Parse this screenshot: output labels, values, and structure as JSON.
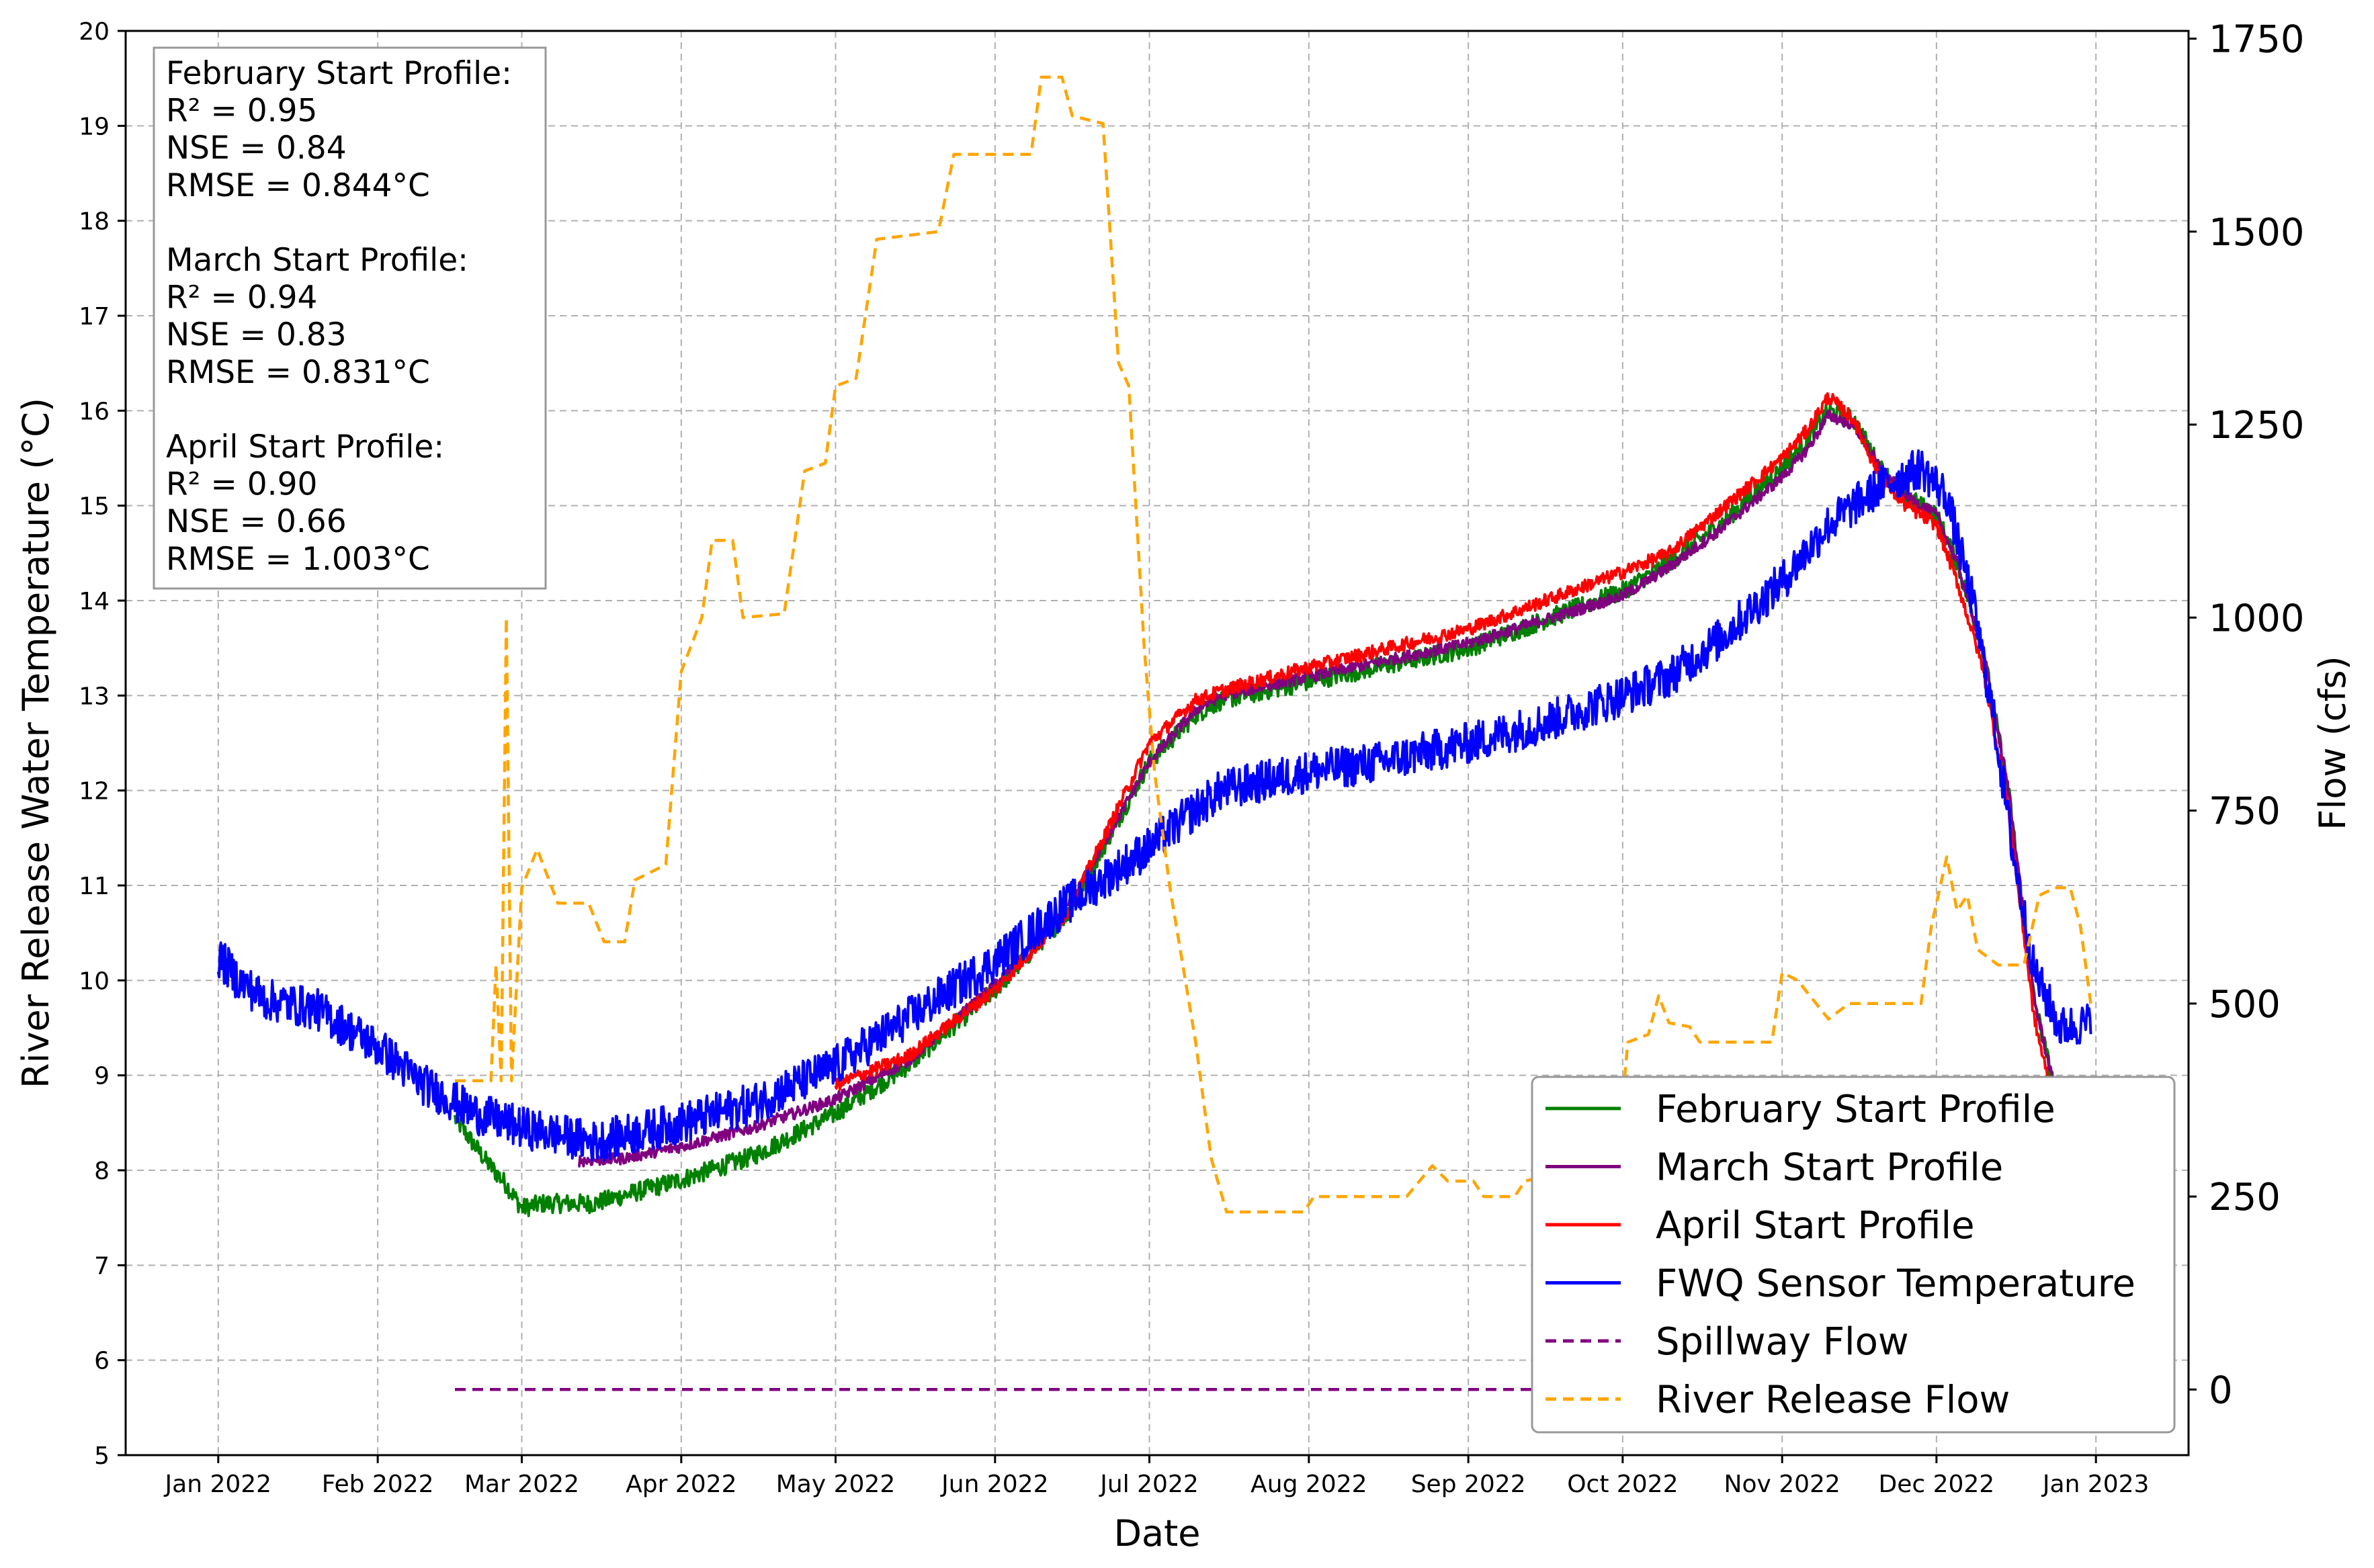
{
  "chart_data": {
    "type": "line",
    "xlabel": "Date",
    "ylabel": "River Release Water Temperature (°C)",
    "ylabel_right": "Flow (cfs)",
    "xlim": [
      "2021-12-14",
      "2023-01-19"
    ],
    "ylim": [
      5,
      20
    ],
    "ylim_right": [
      -85,
      1760
    ],
    "grid": true,
    "legend_position": "lower-right",
    "x_ticks": [
      "Jan 2022",
      "Feb 2022",
      "Mar 2022",
      "Apr 2022",
      "May 2022",
      "Jun 2022",
      "Jul 2022",
      "Aug 2022",
      "Sep 2022",
      "Oct 2022",
      "Nov 2022",
      "Dec 2022",
      "Jan 2023"
    ],
    "x_tick_dates": [
      "2022-01-01",
      "2022-02-01",
      "2022-03-01",
      "2022-04-01",
      "2022-05-01",
      "2022-06-01",
      "2022-07-01",
      "2022-08-01",
      "2022-09-01",
      "2022-10-01",
      "2022-11-01",
      "2022-12-01",
      "2023-01-01"
    ],
    "y_ticks": [
      "5",
      "6",
      "7",
      "8",
      "9",
      "10",
      "11",
      "12",
      "13",
      "14",
      "15",
      "16",
      "17",
      "18",
      "19",
      "20"
    ],
    "y_tick_values": [
      5,
      6,
      7,
      8,
      9,
      10,
      11,
      12,
      13,
      14,
      15,
      16,
      17,
      18,
      19,
      20
    ],
    "y_ticks_right": [
      "0",
      "250",
      "500",
      "750",
      "1000",
      "1250",
      "1500",
      "1750"
    ],
    "y_tick_values_right": [
      0,
      250,
      500,
      750,
      1000,
      1250,
      1500,
      1750
    ],
    "stats_box": [
      "February Start Profile:",
      "R² = 0.95",
      "NSE = 0.84",
      "RMSE = 0.844°C",
      "",
      "March Start Profile:",
      "R² = 0.94",
      "NSE = 0.83",
      "RMSE = 0.831°C",
      "",
      "April Start Profile:",
      "R² = 0.90",
      "NSE = 0.66",
      "RMSE = 1.003°C"
    ],
    "series": [
      {
        "name": "February Start Profile",
        "axis": "left",
        "color": "#008000",
        "dash": false,
        "noise": 0.1,
        "points": [
          [
            "2022-02-16",
            8.55
          ],
          [
            "2022-02-22",
            8.1
          ],
          [
            "2022-02-26",
            7.85
          ],
          [
            "2022-03-01",
            7.6
          ],
          [
            "2022-03-05",
            7.65
          ],
          [
            "2022-03-15",
            7.65
          ],
          [
            "2022-04-01",
            7.9
          ],
          [
            "2022-04-15",
            8.15
          ],
          [
            "2022-05-01",
            8.6
          ],
          [
            "2022-05-15",
            9.1
          ],
          [
            "2022-06-01",
            9.9
          ],
          [
            "2022-06-15",
            10.7
          ],
          [
            "2022-07-01",
            12.3
          ],
          [
            "2022-07-10",
            12.8
          ],
          [
            "2022-07-15",
            12.95
          ],
          [
            "2022-08-01",
            13.15
          ],
          [
            "2022-09-01",
            13.5
          ],
          [
            "2022-10-01",
            14.1
          ],
          [
            "2022-10-10",
            14.4
          ],
          [
            "2022-10-20",
            14.8
          ],
          [
            "2022-11-01",
            15.4
          ],
          [
            "2022-11-06",
            15.7
          ],
          [
            "2022-11-10",
            16.0
          ],
          [
            "2022-11-15",
            15.9
          ],
          [
            "2022-11-20",
            15.4
          ],
          [
            "2022-11-25",
            15.1
          ],
          [
            "2022-12-01",
            14.9
          ],
          [
            "2022-12-05",
            14.4
          ],
          [
            "2022-12-10",
            13.5
          ],
          [
            "2022-12-15",
            12.0
          ],
          [
            "2022-12-20",
            9.8
          ],
          [
            "2022-12-25",
            8.6
          ]
        ]
      },
      {
        "name": "March Start Profile",
        "axis": "left",
        "color": "#800080",
        "dash": false,
        "noise": 0.06,
        "points": [
          [
            "2022-03-12",
            8.1
          ],
          [
            "2022-03-20",
            8.12
          ],
          [
            "2022-04-01",
            8.25
          ],
          [
            "2022-04-15",
            8.45
          ],
          [
            "2022-05-01",
            8.75
          ],
          [
            "2022-05-15",
            9.15
          ],
          [
            "2022-06-01",
            9.95
          ],
          [
            "2022-06-15",
            10.75
          ],
          [
            "2022-07-01",
            12.3
          ],
          [
            "2022-07-10",
            12.85
          ],
          [
            "2022-07-15",
            13.0
          ],
          [
            "2022-08-01",
            13.2
          ],
          [
            "2022-09-01",
            13.55
          ],
          [
            "2022-10-01",
            14.05
          ],
          [
            "2022-10-10",
            14.35
          ],
          [
            "2022-10-20",
            14.75
          ],
          [
            "2022-11-01",
            15.3
          ],
          [
            "2022-11-06",
            15.6
          ],
          [
            "2022-11-10",
            15.95
          ],
          [
            "2022-11-15",
            15.85
          ],
          [
            "2022-11-20",
            15.4
          ],
          [
            "2022-11-25",
            15.1
          ],
          [
            "2022-12-01",
            14.9
          ],
          [
            "2022-12-05",
            14.4
          ],
          [
            "2022-12-10",
            13.5
          ],
          [
            "2022-12-15",
            12.0
          ],
          [
            "2022-12-20",
            9.8
          ],
          [
            "2022-12-25",
            8.6
          ]
        ]
      },
      {
        "name": "April Start Profile",
        "axis": "left",
        "color": "#ff0000",
        "dash": false,
        "noise": 0.07,
        "points": [
          [
            "2022-05-01",
            8.9
          ],
          [
            "2022-05-15",
            9.2
          ],
          [
            "2022-06-01",
            9.9
          ],
          [
            "2022-06-15",
            10.7
          ],
          [
            "2022-07-01",
            12.5
          ],
          [
            "2022-07-10",
            12.95
          ],
          [
            "2022-07-15",
            13.05
          ],
          [
            "2022-08-01",
            13.3
          ],
          [
            "2022-09-01",
            13.7
          ],
          [
            "2022-10-01",
            14.3
          ],
          [
            "2022-10-10",
            14.5
          ],
          [
            "2022-10-20",
            14.95
          ],
          [
            "2022-11-01",
            15.5
          ],
          [
            "2022-11-06",
            15.8
          ],
          [
            "2022-11-10",
            16.15
          ],
          [
            "2022-11-15",
            15.9
          ],
          [
            "2022-11-20",
            15.3
          ],
          [
            "2022-11-25",
            15.0
          ],
          [
            "2022-12-01",
            14.8
          ],
          [
            "2022-12-05",
            14.2
          ],
          [
            "2022-12-10",
            13.3
          ],
          [
            "2022-12-15",
            11.8
          ],
          [
            "2022-12-20",
            9.6
          ],
          [
            "2022-12-25",
            8.4
          ]
        ]
      },
      {
        "name": "FWQ Sensor Temperature",
        "axis": "left",
        "color": "#0000ff",
        "dash": false,
        "noise": 0.22,
        "points": [
          [
            "2022-01-01",
            10.25
          ],
          [
            "2022-01-05",
            10.0
          ],
          [
            "2022-01-10",
            9.8
          ],
          [
            "2022-01-20",
            9.7
          ],
          [
            "2022-02-01",
            9.3
          ],
          [
            "2022-02-10",
            8.9
          ],
          [
            "2022-02-20",
            8.6
          ],
          [
            "2022-03-01",
            8.45
          ],
          [
            "2022-03-15",
            8.3
          ],
          [
            "2022-04-01",
            8.5
          ],
          [
            "2022-04-15",
            8.7
          ],
          [
            "2022-05-01",
            9.1
          ],
          [
            "2022-05-15",
            9.6
          ],
          [
            "2022-06-01",
            10.2
          ],
          [
            "2022-06-15",
            10.8
          ],
          [
            "2022-07-01",
            11.4
          ],
          [
            "2022-07-10",
            11.8
          ],
          [
            "2022-07-15",
            12.0
          ],
          [
            "2022-08-01",
            12.2
          ],
          [
            "2022-08-15",
            12.3
          ],
          [
            "2022-09-01",
            12.5
          ],
          [
            "2022-09-15",
            12.7
          ],
          [
            "2022-10-01",
            13.0
          ],
          [
            "2022-10-10",
            13.2
          ],
          [
            "2022-10-20",
            13.6
          ],
          [
            "2022-11-01",
            14.2
          ],
          [
            "2022-11-10",
            14.8
          ],
          [
            "2022-11-20",
            15.2
          ],
          [
            "2022-11-28",
            15.4
          ],
          [
            "2022-12-03",
            15.1
          ],
          [
            "2022-12-08",
            14.0
          ],
          [
            "2022-12-12",
            12.8
          ],
          [
            "2022-12-16",
            11.3
          ],
          [
            "2022-12-20",
            10.1
          ],
          [
            "2022-12-25",
            9.5
          ],
          [
            "2022-12-31",
            9.55
          ]
        ]
      },
      {
        "name": "Spillway Flow",
        "axis": "right",
        "color": "#800080",
        "dash": true,
        "noise": 0,
        "points": [
          [
            "2022-02-16",
            0
          ],
          [
            "2022-12-31",
            0
          ]
        ]
      },
      {
        "name": "River Release Flow",
        "axis": "right",
        "color": "#ffa500",
        "dash": true,
        "noise": 0,
        "points": [
          [
            "2022-02-16",
            400
          ],
          [
            "2022-02-23",
            400
          ],
          [
            "2022-02-24",
            550
          ],
          [
            "2022-02-25",
            400
          ],
          [
            "2022-02-26",
            1000
          ],
          [
            "2022-02-27",
            400
          ],
          [
            "2022-03-01",
            650
          ],
          [
            "2022-03-04",
            700
          ],
          [
            "2022-03-08",
            630
          ],
          [
            "2022-03-14",
            630
          ],
          [
            "2022-03-17",
            580
          ],
          [
            "2022-03-21",
            580
          ],
          [
            "2022-03-23",
            660
          ],
          [
            "2022-03-29",
            680
          ],
          [
            "2022-04-01",
            930
          ],
          [
            "2022-04-05",
            1000
          ],
          [
            "2022-04-07",
            1100
          ],
          [
            "2022-04-11",
            1100
          ],
          [
            "2022-04-13",
            1000
          ],
          [
            "2022-04-21",
            1005
          ],
          [
            "2022-04-25",
            1190
          ],
          [
            "2022-04-29",
            1200
          ],
          [
            "2022-05-01",
            1300
          ],
          [
            "2022-05-05",
            1310
          ],
          [
            "2022-05-09",
            1490
          ],
          [
            "2022-05-21",
            1500
          ],
          [
            "2022-05-24",
            1600
          ],
          [
            "2022-06-08",
            1600
          ],
          [
            "2022-06-10",
            1700
          ],
          [
            "2022-06-14",
            1700
          ],
          [
            "2022-06-16",
            1650
          ],
          [
            "2022-06-22",
            1640
          ],
          [
            "2022-06-25",
            1330
          ],
          [
            "2022-06-27",
            1300
          ],
          [
            "2022-06-30",
            960
          ],
          [
            "2022-07-02",
            800
          ],
          [
            "2022-07-05",
            650
          ],
          [
            "2022-07-10",
            450
          ],
          [
            "2022-07-13",
            300
          ],
          [
            "2022-07-16",
            230
          ],
          [
            "2022-07-31",
            230
          ],
          [
            "2022-08-02",
            250
          ],
          [
            "2022-08-20",
            250
          ],
          [
            "2022-08-25",
            290
          ],
          [
            "2022-08-28",
            270
          ],
          [
            "2022-09-02",
            270
          ],
          [
            "2022-09-04",
            250
          ],
          [
            "2022-09-10",
            250
          ],
          [
            "2022-09-12",
            270
          ],
          [
            "2022-09-30",
            300
          ],
          [
            "2022-10-02",
            450
          ],
          [
            "2022-10-06",
            460
          ],
          [
            "2022-10-08",
            510
          ],
          [
            "2022-10-10",
            475
          ],
          [
            "2022-10-14",
            470
          ],
          [
            "2022-10-16",
            450
          ],
          [
            "2022-10-30",
            450
          ],
          [
            "2022-11-01",
            540
          ],
          [
            "2022-11-04",
            530
          ],
          [
            "2022-11-10",
            480
          ],
          [
            "2022-11-14",
            500
          ],
          [
            "2022-11-28",
            500
          ],
          [
            "2022-11-30",
            600
          ],
          [
            "2022-12-03",
            690
          ],
          [
            "2022-12-05",
            620
          ],
          [
            "2022-12-07",
            640
          ],
          [
            "2022-12-09",
            570
          ],
          [
            "2022-12-13",
            550
          ],
          [
            "2022-12-18",
            550
          ],
          [
            "2022-12-21",
            640
          ],
          [
            "2022-12-24",
            650
          ],
          [
            "2022-12-27",
            650
          ],
          [
            "2022-12-29",
            600
          ],
          [
            "2022-12-31",
            500
          ]
        ]
      }
    ]
  }
}
